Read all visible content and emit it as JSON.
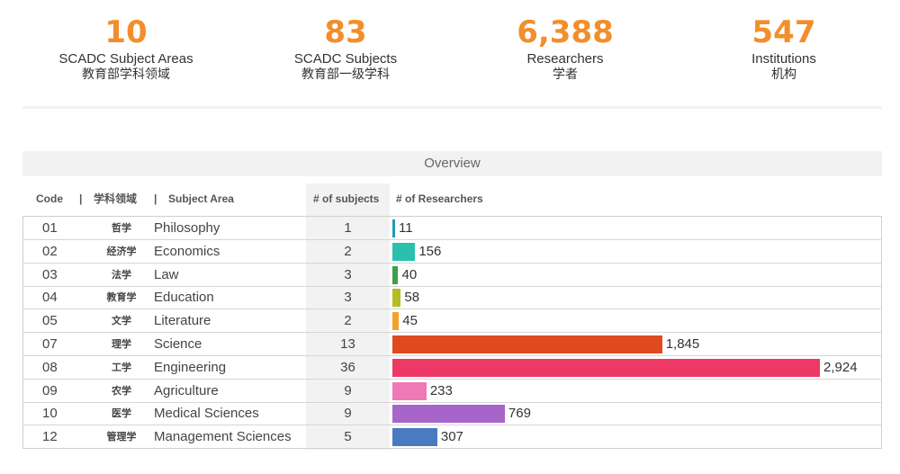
{
  "stats": [
    {
      "value": "10",
      "label_en": "SCADC Subject Areas",
      "label_zh": "教育部学科领域"
    },
    {
      "value": "83",
      "label_en": "SCADC Subjects",
      "label_zh": "教育部一级学科"
    },
    {
      "value": "6,388",
      "label_en": "Researchers",
      "label_zh": "学者"
    },
    {
      "value": "547",
      "label_en": "Institutions",
      "label_zh": "机构"
    }
  ],
  "overview_title": "Overview",
  "headers": {
    "code": "Code",
    "sep1": "|",
    "zh_area": "学科领域",
    "sep2": "|",
    "area": "Subject Area",
    "subjects": "# of subjects",
    "researchers": "# of Researchers"
  },
  "colors": {
    "accent": "#f28e2b",
    "bars": [
      "#1f9bbd",
      "#2bbfae",
      "#3aa04a",
      "#b5bd22",
      "#f2a22a",
      "#e04a1f",
      "#ee3966",
      "#ef78b6",
      "#a865c9",
      "#4a7bc0"
    ]
  },
  "chart_data": {
    "type": "bar",
    "orientation": "horizontal",
    "columns": [
      "Code",
      "学科领域",
      "Subject Area",
      "# of subjects",
      "# of Researchers"
    ],
    "rows": [
      {
        "code": "01",
        "zh": "哲学",
        "area": "Philosophy",
        "subjects": 1,
        "researchers": 11,
        "researchers_label": "11"
      },
      {
        "code": "02",
        "zh": "经济学",
        "area": "Economics",
        "subjects": 2,
        "researchers": 156,
        "researchers_label": "156"
      },
      {
        "code": "03",
        "zh": "法学",
        "area": "Law",
        "subjects": 3,
        "researchers": 40,
        "researchers_label": "40"
      },
      {
        "code": "04",
        "zh": "教育学",
        "area": "Education",
        "subjects": 3,
        "researchers": 58,
        "researchers_label": "58"
      },
      {
        "code": "05",
        "zh": "文学",
        "area": "Literature",
        "subjects": 2,
        "researchers": 45,
        "researchers_label": "45"
      },
      {
        "code": "07",
        "zh": "理学",
        "area": "Science",
        "subjects": 13,
        "researchers": 1845,
        "researchers_label": "1,845"
      },
      {
        "code": "08",
        "zh": "工学",
        "area": "Engineering",
        "subjects": 36,
        "researchers": 2924,
        "researchers_label": "2,924"
      },
      {
        "code": "09",
        "zh": "农学",
        "area": "Agriculture",
        "subjects": 9,
        "researchers": 233,
        "researchers_label": "233"
      },
      {
        "code": "10",
        "zh": "医学",
        "area": "Medical Sciences",
        "subjects": 9,
        "researchers": 769,
        "researchers_label": "769"
      },
      {
        "code": "12",
        "zh": "管理学",
        "area": "Management Sciences",
        "subjects": 5,
        "researchers": 307,
        "researchers_label": "307"
      }
    ],
    "xlim": [
      0,
      2924
    ]
  }
}
